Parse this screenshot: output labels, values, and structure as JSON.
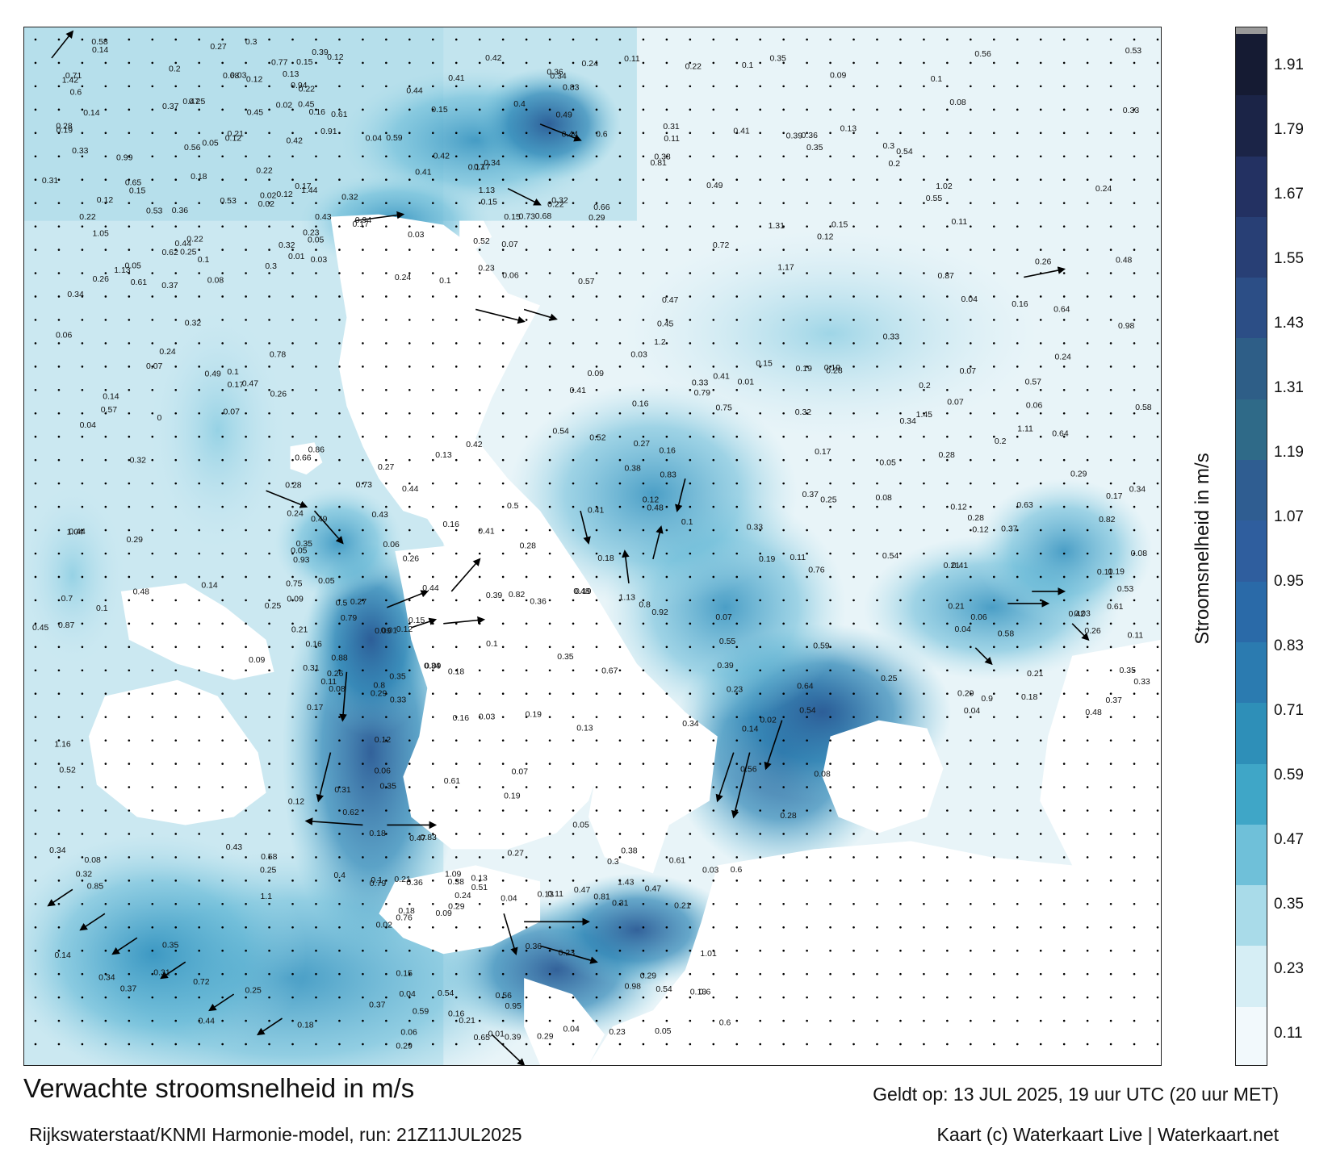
{
  "map": {
    "title": "Verwachte stroomsnelheid in m/s",
    "model_info": "Rijkswaterstaat/KNMI Harmonie-model, run: 21Z11JUL2025",
    "valid_time": "Geldt op: 13 JUL 2025, 19 uur UTC (20 uur MET)",
    "credits": "Kaart (c) Waterkaart Live | Waterkaart.net",
    "colorbar": {
      "label": "Stroomsnelheid in m/s",
      "ticks": [
        "1.91",
        "1.79",
        "1.67",
        "1.55",
        "1.43",
        "1.31",
        "1.19",
        "1.07",
        "0.95",
        "0.83",
        "0.71",
        "0.59",
        "0.47",
        "0.35",
        "0.23",
        "0.11"
      ],
      "colors": [
        "#f2f9fc",
        "#d6eef5",
        "#a9dbe9",
        "#6fc0d9",
        "#3fa6c7",
        "#2e8fb8",
        "#2b7bb0",
        "#2a6aa8",
        "#2f5e9e",
        "#2f5d91",
        "#2f6a88",
        "#2e5e87",
        "#2c4e86",
        "#283f75",
        "#233162",
        "#1b2447",
        "#151b33"
      ],
      "vmin": 0.05,
      "vmax": 1.97
    },
    "speed_labels": [
      {
        "t": "0.18"
      },
      {
        "t": "0.16"
      },
      {
        "t": "0.15"
      },
      {
        "t": "0.14"
      },
      {
        "t": "0.12"
      },
      {
        "t": "0.13"
      },
      {
        "t": "0.06"
      },
      {
        "t": "0.11"
      },
      {
        "t": "0.12"
      },
      {
        "t": "0.17"
      },
      {
        "t": "0.22"
      },
      {
        "t": "0.18"
      },
      {
        "t": "0.16"
      },
      {
        "t": "0.17"
      },
      {
        "t": "0.21"
      },
      {
        "t": "0.31"
      },
      {
        "t": "0.26"
      },
      {
        "t": "0.15"
      },
      {
        "t": "0.2"
      },
      {
        "t": "0.32"
      },
      {
        "t": "0.27"
      },
      {
        "t": "0.19"
      },
      {
        "t": "0.25"
      },
      {
        "t": "0.13"
      },
      {
        "t": "0.12"
      },
      {
        "t": "0.22"
      },
      {
        "t": "0.31"
      },
      {
        "t": "0.24"
      },
      {
        "t": "0.21"
      },
      {
        "t": "0.39"
      },
      {
        "t": "0.34"
      },
      {
        "t": "0.36"
      },
      {
        "t": "0.44"
      },
      {
        "t": "0.42"
      },
      {
        "t": "0.41"
      },
      {
        "t": "0.47"
      },
      {
        "t": "0.31"
      },
      {
        "t": "0.28"
      },
      {
        "t": "0.35"
      },
      {
        "t": "0.29"
      },
      {
        "t": "0.27"
      },
      {
        "t": "0.59"
      },
      {
        "t": "0.49"
      },
      {
        "t": "0.43"
      },
      {
        "t": "0.4"
      },
      {
        "t": "0.41"
      },
      {
        "t": "0.37"
      },
      {
        "t": "0.29"
      },
      {
        "t": "0.25"
      },
      {
        "t": "0.34"
      },
      {
        "t": "0.45"
      },
      {
        "t": "0.28"
      },
      {
        "t": "0.24"
      },
      {
        "t": "0.23"
      },
      {
        "t": "0.21"
      },
      {
        "t": "0.16"
      },
      {
        "t": "0.14"
      },
      {
        "t": "0.15"
      },
      {
        "t": "0.33"
      },
      {
        "t": "0.26"
      },
      {
        "t": "0.27"
      },
      {
        "t": "0.19"
      },
      {
        "t": "0.25"
      },
      {
        "t": "0.29"
      },
      {
        "t": "0.13"
      },
      {
        "t": "0.12"
      },
      {
        "t": "0.1"
      },
      {
        "t": "0.07"
      },
      {
        "t": "0.09"
      },
      {
        "t": "0.03"
      },
      {
        "t": "0.04"
      },
      {
        "t": "0.01"
      },
      {
        "t": "0.02"
      },
      {
        "t": "0.04"
      },
      {
        "t": "0.03"
      },
      {
        "t": "0.06"
      },
      {
        "t": "0.05"
      },
      {
        "t": "0.1"
      },
      {
        "t": "0.12"
      },
      {
        "t": "0.04"
      },
      {
        "t": "0.05"
      },
      {
        "t": "0.03"
      },
      {
        "t": "0.11"
      },
      {
        "t": "0.12"
      },
      {
        "t": "0.1"
      },
      {
        "t": "0.11"
      },
      {
        "t": "0.06"
      },
      {
        "t": "0.05"
      },
      {
        "t": "0.08"
      },
      {
        "t": "0.07"
      },
      {
        "t": "0.09"
      },
      {
        "t": "0.17"
      },
      {
        "t": "0.15"
      },
      {
        "t": "0.14"
      },
      {
        "t": "0.12"
      },
      {
        "t": "0.13"
      },
      {
        "t": "0.19"
      },
      {
        "t": "0.1"
      },
      {
        "t": "0.08"
      },
      {
        "t": "0.07"
      },
      {
        "t": "0.11"
      },
      {
        "t": "0.09"
      },
      {
        "t": "0.08"
      },
      {
        "t": "0.02"
      },
      {
        "t": "0.12"
      },
      {
        "t": "0.17"
      },
      {
        "t": "0.15"
      },
      {
        "t": "0.14"
      },
      {
        "t": "0.16"
      },
      {
        "t": "0.18"
      },
      {
        "t": "0.19"
      },
      {
        "t": "0.21"
      },
      {
        "t": "0.25"
      },
      {
        "t": "0.41"
      },
      {
        "t": "0.35"
      },
      {
        "t": "0.34"
      },
      {
        "t": "0.29"
      },
      {
        "t": "0.32"
      },
      {
        "t": "0.28"
      },
      {
        "t": "0.27"
      },
      {
        "t": "0.22"
      },
      {
        "t": "0.24"
      },
      {
        "t": "0.3"
      },
      {
        "t": "0.32"
      },
      {
        "t": "0.34"
      },
      {
        "t": "0.35"
      },
      {
        "t": "0.37"
      },
      {
        "t": "0.39"
      },
      {
        "t": "0.42"
      },
      {
        "t": "0.45"
      },
      {
        "t": "0.47"
      },
      {
        "t": "0.44"
      },
      {
        "t": "0.5"
      },
      {
        "t": "0.52"
      },
      {
        "t": "0.53"
      },
      {
        "t": "0.54"
      },
      {
        "t": "0.65"
      },
      {
        "t": "0.43"
      },
      {
        "t": "0.48"
      },
      {
        "t": "0.29"
      },
      {
        "t": "0.33"
      },
      {
        "t": "0.28"
      },
      {
        "t": "0.26"
      },
      {
        "t": "0.23"
      },
      {
        "t": "0.21"
      },
      {
        "t": "0.22"
      },
      {
        "t": "0.19"
      },
      {
        "t": "0.25"
      },
      {
        "t": "0.18"
      },
      {
        "t": "0.16"
      },
      {
        "t": "0.17"
      },
      {
        "t": "0.24"
      },
      {
        "t": "0.28"
      },
      {
        "t": "0.24"
      },
      {
        "t": "0.26"
      },
      {
        "t": "0.32"
      },
      {
        "t": "0.43"
      },
      {
        "t": "0.48"
      },
      {
        "t": "0.54"
      },
      {
        "t": "0.47"
      },
      {
        "t": "0.53"
      },
      {
        "t": "0.41"
      },
      {
        "t": "0.29"
      },
      {
        "t": "0.37"
      },
      {
        "t": "0.44"
      },
      {
        "t": "0.5"
      },
      {
        "t": "0.21"
      },
      {
        "t": "0.6"
      },
      {
        "t": "0.58"
      },
      {
        "t": "0.57"
      },
      {
        "t": "0.64"
      },
      {
        "t": "0.72"
      },
      {
        "t": "0.75"
      },
      {
        "t": "0.79"
      },
      {
        "t": "0.63"
      },
      {
        "t": "0.65"
      },
      {
        "t": "0.68"
      },
      {
        "t": "0.73"
      },
      {
        "t": "0.6"
      },
      {
        "t": "1.04"
      },
      {
        "t": "0.93"
      },
      {
        "t": "0.92"
      },
      {
        "t": "0.9"
      },
      {
        "t": "0.76"
      },
      {
        "t": "0.71"
      },
      {
        "t": "0.91"
      },
      {
        "t": "0.81"
      },
      {
        "t": "0.7"
      },
      {
        "t": "0.62"
      },
      {
        "t": "0.8"
      },
      {
        "t": "0.61"
      },
      {
        "t": "0.56"
      },
      {
        "t": "0.47"
      },
      {
        "t": "0.49"
      },
      {
        "t": "0.55"
      },
      {
        "t": "0.35"
      },
      {
        "t": "0.31"
      },
      {
        "t": "0.38"
      },
      {
        "t": "0.42"
      },
      {
        "t": "0.54"
      },
      {
        "t": "0.33"
      },
      {
        "t": "0.36"
      },
      {
        "t": "0.35"
      },
      {
        "t": "0.45"
      },
      {
        "t": "0.44"
      },
      {
        "t": "0.39"
      },
      {
        "t": "0.41"
      },
      {
        "t": "0.37"
      },
      {
        "t": "0.36"
      },
      {
        "t": "0.34"
      },
      {
        "t": "0.98"
      },
      {
        "t": "0.66"
      },
      {
        "t": "0.79"
      },
      {
        "t": "0.64"
      },
      {
        "t": "0.82"
      },
      {
        "t": "0.95"
      },
      {
        "t": "1.05"
      },
      {
        "t": "1.13"
      },
      {
        "t": "1.17"
      },
      {
        "t": "0.87"
      },
      {
        "t": "0.73"
      },
      {
        "t": "0.83"
      },
      {
        "t": "0.54"
      },
      {
        "t": "0.81"
      },
      {
        "t": "1.13"
      },
      {
        "t": "0.94"
      },
      {
        "t": "1.02"
      },
      {
        "t": "0.78"
      },
      {
        "t": "0.86"
      },
      {
        "t": "0.56"
      },
      {
        "t": "0.57"
      },
      {
        "t": "0.79"
      },
      {
        "t": "0.61"
      },
      {
        "t": "0.77"
      },
      {
        "t": "0.72"
      },
      {
        "t": "0.49"
      },
      {
        "t": "0.88"
      },
      {
        "t": "0.82"
      },
      {
        "t": "0.76"
      },
      {
        "t": "0.98"
      },
      {
        "t": "0.61"
      },
      {
        "t": "0.66"
      },
      {
        "t": "0.56"
      },
      {
        "t": "0.44"
      },
      {
        "t": "0.35"
      },
      {
        "t": "0.34"
      },
      {
        "t": "0.33"
      },
      {
        "t": "0.38"
      },
      {
        "t": "0.45"
      },
      {
        "t": "0.44"
      },
      {
        "t": "0.36"
      },
      {
        "t": "0.37"
      },
      {
        "t": "0.42"
      },
      {
        "t": "0.41"
      },
      {
        "t": "0.48"
      },
      {
        "t": "0.47"
      },
      {
        "t": "0.53"
      },
      {
        "t": "0.52"
      },
      {
        "t": "0.54"
      },
      {
        "t": "0.58"
      },
      {
        "t": "0.61"
      },
      {
        "t": "0.55"
      },
      {
        "t": "0.59"
      },
      {
        "t": "0.6"
      },
      {
        "t": "0.56"
      },
      {
        "t": "0.44"
      },
      {
        "t": "0.39"
      },
      {
        "t": "0.57"
      },
      {
        "t": "0.49"
      },
      {
        "t": "0.48"
      },
      {
        "t": "1.45"
      },
      {
        "t": "1.43"
      },
      {
        "t": "1.42"
      },
      {
        "t": "1.44"
      },
      {
        "t": "1.31"
      },
      {
        "t": "1.16"
      },
      {
        "t": "1.09"
      },
      {
        "t": "1.13"
      },
      {
        "t": "1.11"
      },
      {
        "t": "1.01"
      },
      {
        "t": "0.99"
      },
      {
        "t": "0.94"
      },
      {
        "t": "0.87"
      },
      {
        "t": "0.85"
      },
      {
        "t": "0.83"
      },
      {
        "t": "0.67"
      },
      {
        "t": "0.58"
      },
      {
        "t": "0.6"
      },
      {
        "t": "0.62"
      },
      {
        "t": "0.68"
      },
      {
        "t": "0.53"
      },
      {
        "t": "0.52"
      },
      {
        "t": "0.51"
      },
      {
        "t": "0.41"
      },
      {
        "t": "0.29"
      },
      {
        "t": "0.23"
      },
      {
        "t": "0.6"
      },
      {
        "t": "0.83"
      },
      {
        "t": "1.2"
      },
      {
        "t": "1.1"
      },
      {
        "t": "0.8"
      },
      {
        "t": "0.75"
      },
      {
        "t": "0.64"
      },
      {
        "t": "0.59"
      },
      {
        "t": "0.3"
      },
      {
        "t": "0.32"
      },
      {
        "t": "0.38"
      },
      {
        "t": "0.31"
      },
      {
        "t": "0.35"
      },
      {
        "t": "0.33"
      },
      {
        "t": "0.34"
      },
      {
        "t": "0.36"
      },
      {
        "t": "0.37"
      },
      {
        "t": "0.42"
      },
      {
        "t": "0.41"
      },
      {
        "t": "0.48"
      },
      {
        "t": "0.47"
      },
      {
        "t": "0.54"
      },
      {
        "t": "0.58"
      },
      {
        "t": "0.61"
      },
      {
        "t": "0.2"
      },
      {
        "t": "0.15"
      },
      {
        "t": "0.19"
      },
      {
        "t": "0.04"
      },
      {
        "t": "0.01"
      },
      {
        "t": "0.02"
      },
      {
        "t": "0.03"
      },
      {
        "t": "0.04"
      },
      {
        "t": "0.05"
      },
      {
        "t": "0.06"
      },
      {
        "t": "0.07"
      },
      {
        "t": "0.08"
      },
      {
        "t": "0.09"
      },
      {
        "t": "0.1"
      },
      {
        "t": "0.11"
      },
      {
        "t": "0.13"
      },
      {
        "t": "0.14"
      },
      {
        "t": "0.15"
      },
      {
        "t": "0.16"
      },
      {
        "t": "0.17"
      },
      {
        "t": "0.18"
      },
      {
        "t": "0.19"
      },
      {
        "t": "0.2"
      },
      {
        "t": "0.21"
      },
      {
        "t": "0.22"
      },
      {
        "t": "0.23"
      },
      {
        "t": "0.24"
      },
      {
        "t": "0.25"
      },
      {
        "t": "0.26"
      },
      {
        "t": "0.27"
      },
      {
        "t": "0.28"
      },
      {
        "t": "0.29"
      },
      {
        "t": "0.3"
      },
      {
        "t": "0.32"
      },
      {
        "t": "0.33"
      },
      {
        "t": "0.34"
      },
      {
        "t": "0.13"
      },
      {
        "t": "0.12"
      },
      {
        "t": "0.11"
      },
      {
        "t": "0.18"
      },
      {
        "t": "0.15"
      },
      {
        "t": "0.17"
      },
      {
        "t": "0.1"
      },
      {
        "t": "0.09"
      },
      {
        "t": "0.08"
      },
      {
        "t": "0.07"
      },
      {
        "t": "0.05"
      },
      {
        "t": "0.04"
      },
      {
        "t": "0.03"
      },
      {
        "t": "0.02"
      },
      {
        "t": "0.01"
      },
      {
        "t": "0"
      },
      {
        "t": "0.06"
      },
      {
        "t": "0.05"
      },
      {
        "t": "0.04"
      },
      {
        "t": "0.03"
      },
      {
        "t": "0.02"
      },
      {
        "t": "0.01"
      },
      {
        "t": "0.04"
      },
      {
        "t": "0.05"
      },
      {
        "t": "0.06"
      },
      {
        "t": "0.07"
      },
      {
        "t": "0.08"
      },
      {
        "t": "0.09"
      },
      {
        "t": "0.1"
      },
      {
        "t": "0.11"
      },
      {
        "t": "0.12"
      },
      {
        "t": "0.14"
      },
      {
        "t": "0.12"
      },
      {
        "t": "0.16"
      },
      {
        "t": "0.18"
      },
      {
        "t": "0.15"
      },
      {
        "t": "0.17"
      },
      {
        "t": "0.12"
      },
      {
        "t": "0.11"
      },
      {
        "t": "0.1"
      },
      {
        "t": "0.09"
      },
      {
        "t": "0.08"
      },
      {
        "t": "0.07"
      },
      {
        "t": "0.06"
      },
      {
        "t": "0.05"
      },
      {
        "t": "0.03"
      },
      {
        "t": "0.13"
      },
      {
        "t": "0.1"
      },
      {
        "t": "0.16"
      },
      {
        "t": "0.19"
      },
      {
        "t": "0.2"
      },
      {
        "t": "0.21"
      },
      {
        "t": "0.22"
      },
      {
        "t": "0.23"
      },
      {
        "t": "0.24"
      },
      {
        "t": "0.25"
      },
      {
        "t": "0.26"
      },
      {
        "t": "0.28"
      },
      {
        "t": "0.29"
      },
      {
        "t": "0.3"
      },
      {
        "t": "0.31"
      },
      {
        "t": "0.32"
      },
      {
        "t": "0.33"
      },
      {
        "t": "0.34"
      },
      {
        "t": "0.35"
      },
      {
        "t": "0.36"
      },
      {
        "t": "0.37"
      },
      {
        "t": "0.38"
      },
      {
        "t": "0.39"
      },
      {
        "t": "0.4"
      }
    ]
  }
}
